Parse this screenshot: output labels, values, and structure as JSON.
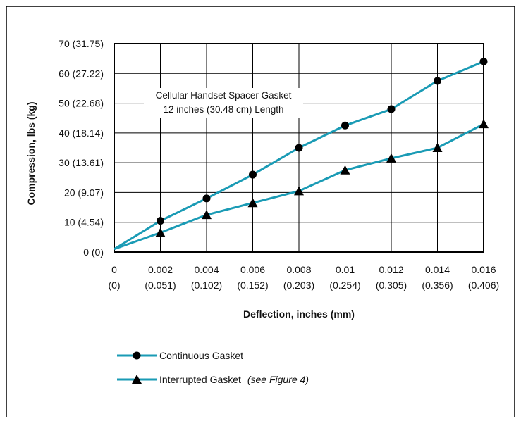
{
  "chart_data": {
    "type": "line",
    "x": [
      0,
      0.002,
      0.004,
      0.006,
      0.008,
      0.01,
      0.012,
      0.014,
      0.016
    ],
    "x_tick_labels": [
      "0",
      "0.002",
      "0.004",
      "0.006",
      "0.008",
      "0.01",
      "0.012",
      "0.014",
      "0.016"
    ],
    "x_tick_sublabels": [
      "(0)",
      "(0.051)",
      "(0.102)",
      "(0.152)",
      "(0.203)",
      "(0.254)",
      "(0.305)",
      "(0.356)",
      "(0.406)"
    ],
    "y_ticks": [
      0,
      10,
      20,
      30,
      40,
      50,
      60,
      70
    ],
    "y_tick_labels": [
      "0 (0)",
      "10 (4.54)",
      "20 (9.07)",
      "30 (13.61)",
      "40 (18.14)",
      "50 (22.68)",
      "60 (27.22)",
      "70 (31.75)"
    ],
    "xlabel": "Deflection, inches (mm)",
    "ylabel": "Compression, lbs (kg)",
    "xlim": [
      0,
      0.016
    ],
    "ylim": [
      0,
      70
    ],
    "grid": true,
    "legend_position": "bottom",
    "annotation": {
      "line1": "Cellular Handset Spacer Gasket",
      "line2": "12 inches (30.48 cm) Length"
    },
    "series": [
      {
        "name": "Continuous Gasket",
        "marker": "circle",
        "color": "#1a9bb5",
        "y": [
          1,
          10.5,
          18,
          26,
          35,
          42.5,
          48,
          57.5,
          64
        ]
      },
      {
        "name": "Interrupted Gasket",
        "name_suffix": "(see Figure 4)",
        "marker": "triangle",
        "color": "#1a9bb5",
        "y": [
          1,
          6.5,
          12.5,
          16.5,
          20.5,
          27.5,
          31.5,
          35,
          43
        ]
      }
    ]
  }
}
